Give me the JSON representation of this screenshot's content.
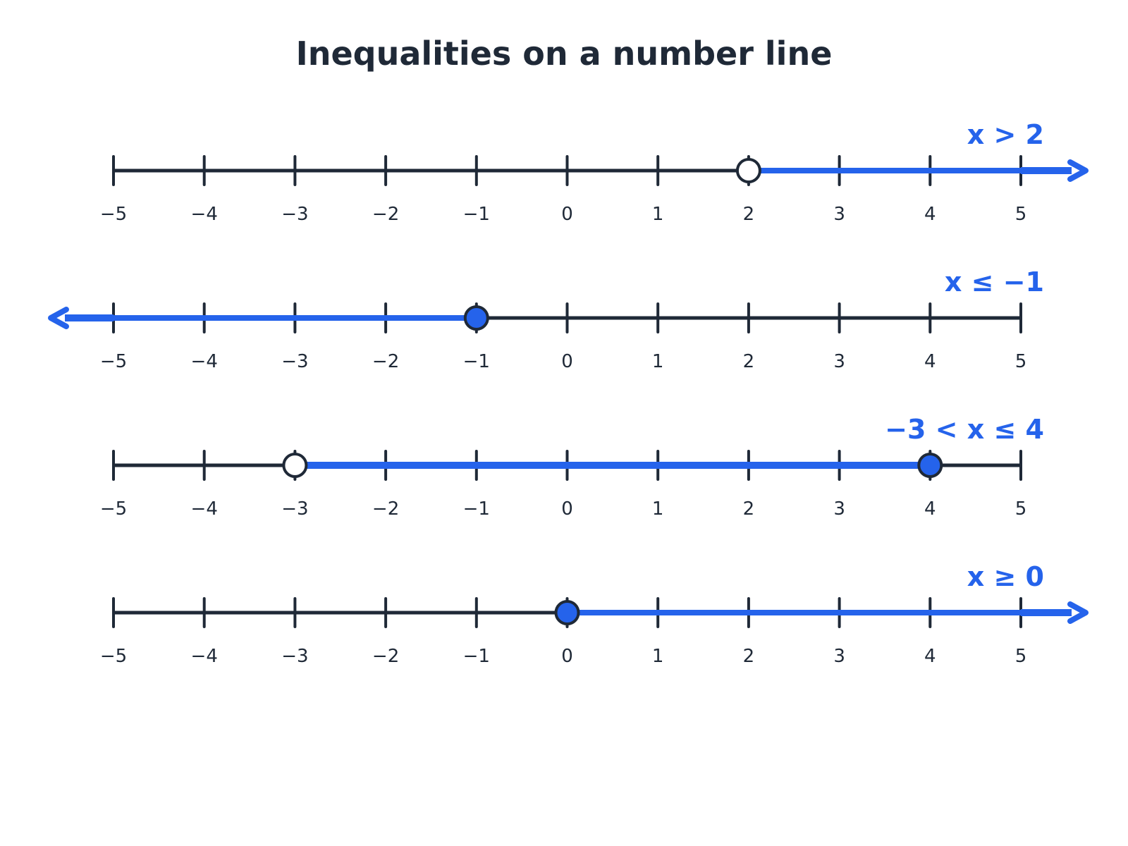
{
  "title": "Inequalities on a number line",
  "colors": {
    "ink": "#1f2937",
    "accent": "#2563eb",
    "open_fill": "#ffffff"
  },
  "chart_data": {
    "type": "number_line",
    "xlim": [
      -5,
      5
    ],
    "tick_values": [
      -5,
      -4,
      -3,
      -2,
      -1,
      0,
      1,
      2,
      3,
      4,
      5
    ],
    "tick_labels": [
      "−5",
      "−4",
      "−3",
      "−2",
      "−1",
      "0",
      "1",
      "2",
      "3",
      "4",
      "5"
    ],
    "lines": [
      {
        "label": "x > 2",
        "from": {
          "value": 2,
          "closed": false
        },
        "to": {
          "value": null,
          "direction": "right"
        }
      },
      {
        "label": "x ≤ −1",
        "from": {
          "value": null,
          "direction": "left"
        },
        "to": {
          "value": -1,
          "closed": true
        }
      },
      {
        "label": "−3 < x ≤ 4",
        "from": {
          "value": -3,
          "closed": false
        },
        "to": {
          "value": 4,
          "closed": true
        }
      },
      {
        "label": "x ≥ 0",
        "from": {
          "value": 0,
          "closed": true
        },
        "to": {
          "value": null,
          "direction": "right"
        }
      }
    ]
  }
}
